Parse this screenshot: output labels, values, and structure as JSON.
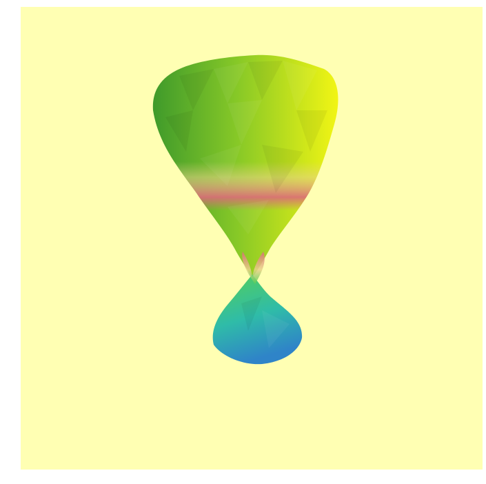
{
  "viewer": {
    "background_color": "#ffffb3",
    "frame_color": "#ffffff"
  },
  "object": {
    "description_icon": "vase-mesh-icon",
    "colors": {
      "top_green": "#3f9a2b",
      "top_mid_green": "#86c827",
      "top_yellow": "#f2f514",
      "body_light_green": "#b8df40",
      "neck_beige": "#e8d28a",
      "neck_pink": "#dc6a7a",
      "base_green": "#55cf57",
      "base_teal": "#2fbca8",
      "base_blue": "#2f84c8"
    }
  }
}
